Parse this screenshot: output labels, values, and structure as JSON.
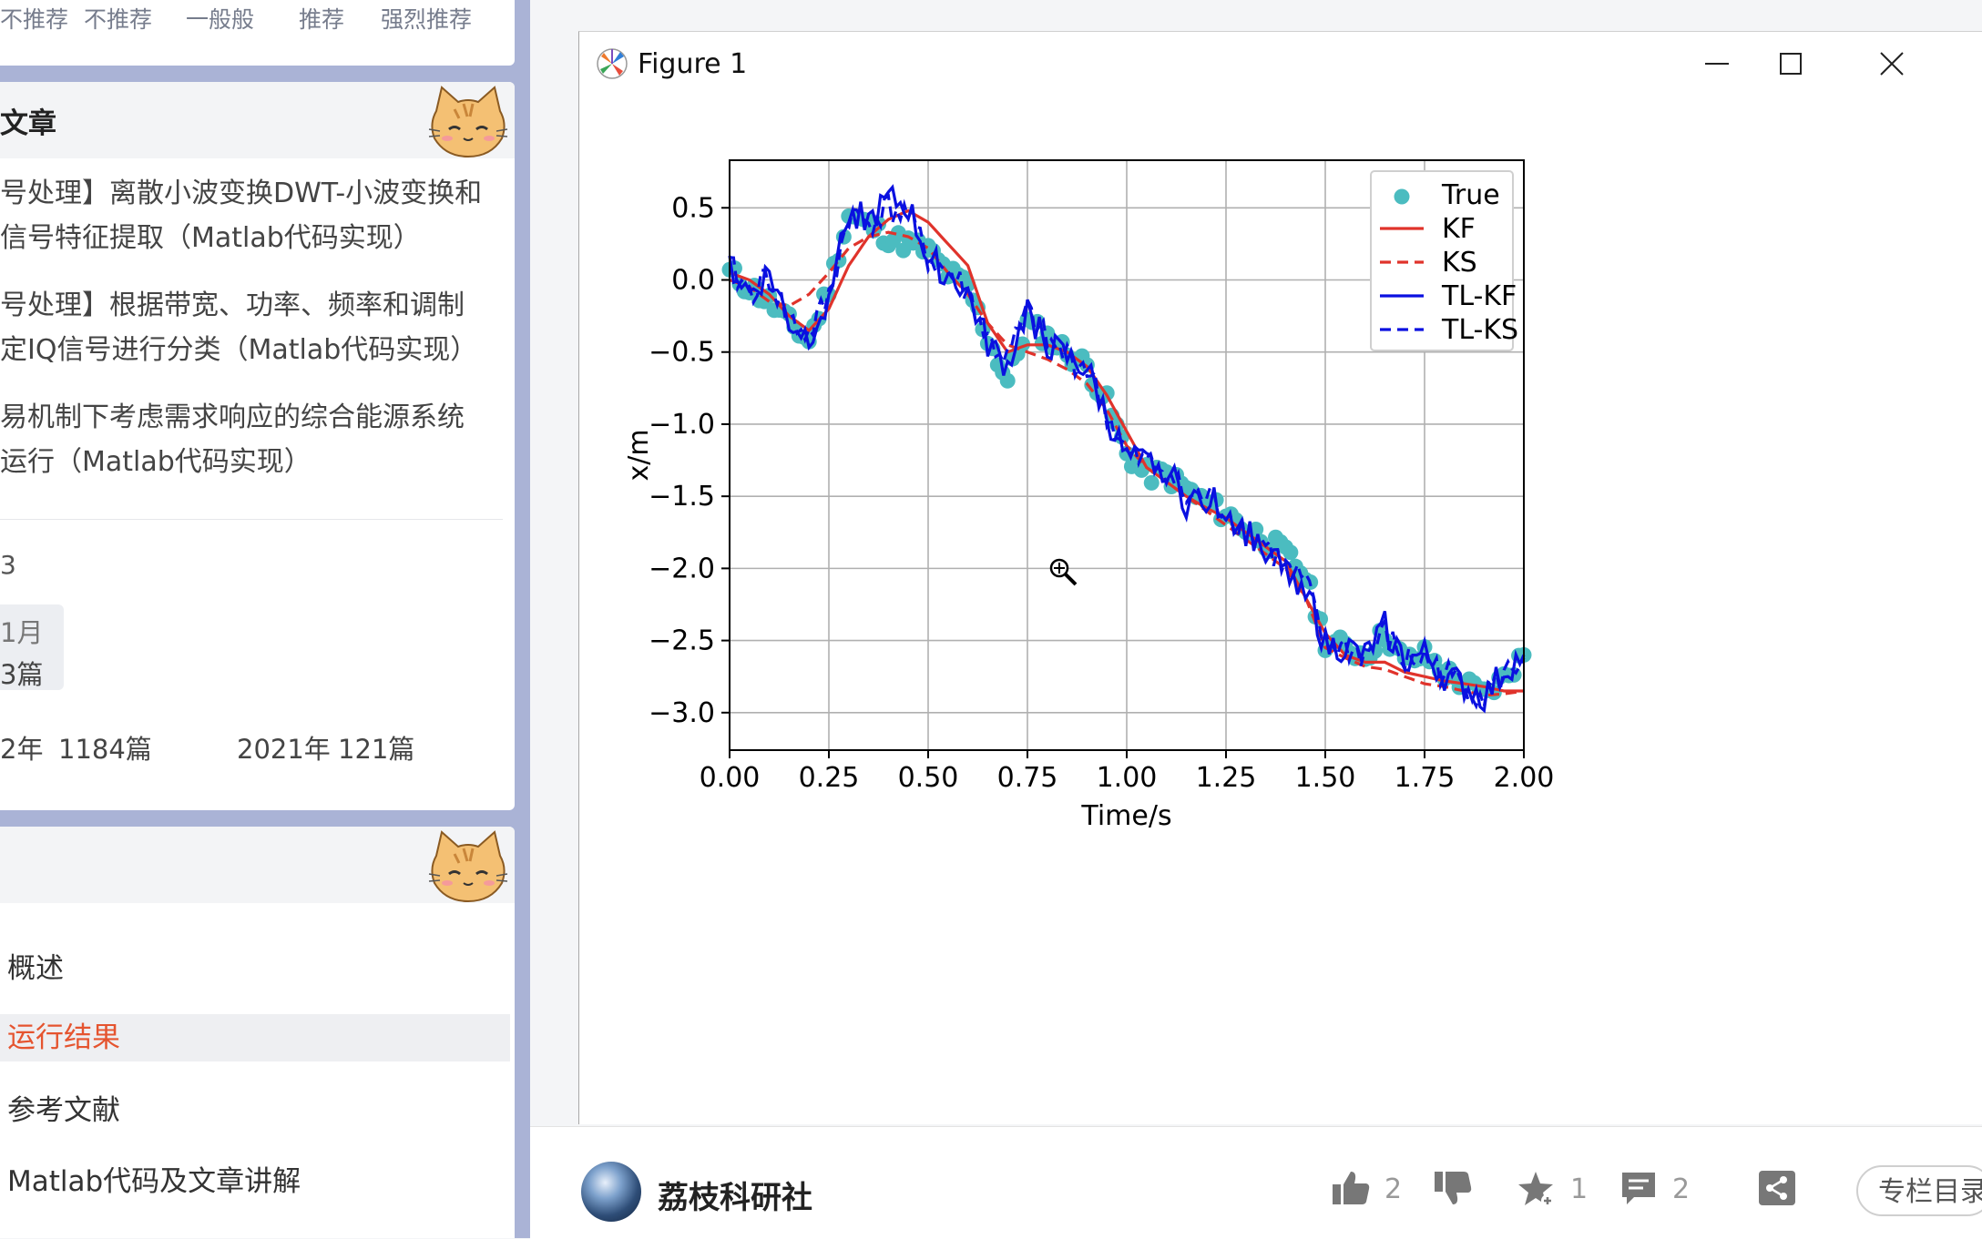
{
  "sidebar": {
    "rating_labels": [
      "不推荐",
      "不推荐",
      "一般般",
      "推荐",
      "强烈推荐"
    ],
    "related_title": "文章",
    "articles": [
      [
        "号处理】离散小波变换DWT-小波变换和",
        "信号特征提取（Matlab代码实现）"
      ],
      [
        "号处理】根据带宽、功率、频率和调制",
        "定IQ信号进行分类（Matlab代码实现）"
      ],
      [
        "易机制下考虑需求响应的综合能源系统",
        "运行（Matlab代码实现）"
      ]
    ],
    "stat_value": "3",
    "month_chip": [
      "1月",
      "3篇"
    ],
    "archive": [
      {
        "year": "2年",
        "count": "1184篇"
      },
      {
        "year": "2021年",
        "count": "121篇"
      }
    ],
    "toc_title": "",
    "toc": [
      {
        "label": "概述",
        "active": false
      },
      {
        "label": "运行结果",
        "active": true
      },
      {
        "label": "参考文献",
        "active": false
      },
      {
        "label": "Matlab代码及文章讲解",
        "active": false
      }
    ]
  },
  "window": {
    "title": "Figure 1",
    "controls": [
      "minimize",
      "maximize",
      "close"
    ]
  },
  "chart_data": {
    "type": "line",
    "xlabel": "Time/s",
    "ylabel": "x/m",
    "xlim": [
      0.0,
      2.0
    ],
    "ylim": [
      -3.26,
      0.83
    ],
    "xticks": [
      "0.00",
      "0.25",
      "0.50",
      "0.75",
      "1.00",
      "1.25",
      "1.50",
      "1.75",
      "2.00"
    ],
    "yticks": [
      "0.5",
      "0.0",
      "−0.5",
      "−1.0",
      "−1.5",
      "−2.0",
      "−2.5",
      "−3.0"
    ],
    "grid": true,
    "legend_position": "top-right",
    "legend": [
      {
        "name": "True",
        "style": "marker",
        "color": "#4bbcc0"
      },
      {
        "name": "KF",
        "style": "solid",
        "color": "#e0332b"
      },
      {
        "name": "KS",
        "style": "dashed",
        "color": "#e0332b"
      },
      {
        "name": "TL-KF",
        "style": "solid",
        "color": "#0a10e0"
      },
      {
        "name": "TL-KS",
        "style": "dashed",
        "color": "#0a10e0"
      }
    ],
    "x": [
      0.0,
      0.05,
      0.1,
      0.15,
      0.2,
      0.25,
      0.3,
      0.35,
      0.4,
      0.45,
      0.5,
      0.55,
      0.6,
      0.65,
      0.7,
      0.75,
      0.8,
      0.85,
      0.9,
      0.95,
      1.0,
      1.05,
      1.1,
      1.15,
      1.2,
      1.25,
      1.3,
      1.35,
      1.4,
      1.45,
      1.5,
      1.55,
      1.6,
      1.65,
      1.7,
      1.75,
      1.8,
      1.85,
      1.9,
      1.95,
      2.0
    ],
    "series": [
      {
        "name": "True",
        "values": [
          0.05,
          -0.05,
          -0.15,
          -0.3,
          -0.42,
          -0.05,
          0.45,
          0.38,
          0.3,
          0.25,
          0.2,
          0.05,
          -0.05,
          -0.4,
          -0.7,
          -0.3,
          -0.4,
          -0.5,
          -0.6,
          -0.85,
          -1.2,
          -1.35,
          -1.35,
          -1.45,
          -1.55,
          -1.62,
          -1.72,
          -1.8,
          -1.9,
          -2.05,
          -2.5,
          -2.55,
          -2.6,
          -2.45,
          -2.65,
          -2.6,
          -2.72,
          -2.8,
          -2.88,
          -2.76,
          -2.6
        ]
      },
      {
        "name": "KF",
        "values": [
          0.05,
          0.0,
          -0.1,
          -0.25,
          -0.35,
          -0.2,
          0.1,
          0.3,
          0.42,
          0.48,
          0.4,
          0.25,
          0.1,
          -0.3,
          -0.5,
          -0.45,
          -0.45,
          -0.5,
          -0.6,
          -0.8,
          -1.05,
          -1.3,
          -1.4,
          -1.5,
          -1.58,
          -1.65,
          -1.75,
          -1.85,
          -1.95,
          -2.2,
          -2.45,
          -2.6,
          -2.65,
          -2.65,
          -2.72,
          -2.75,
          -2.78,
          -2.8,
          -2.82,
          -2.85,
          -2.85
        ]
      },
      {
        "name": "KS",
        "values": [
          0.0,
          -0.05,
          -0.15,
          -0.18,
          -0.1,
          0.05,
          0.22,
          0.3,
          0.33,
          0.3,
          0.22,
          0.05,
          -0.1,
          -0.3,
          -0.45,
          -0.5,
          -0.55,
          -0.62,
          -0.72,
          -0.9,
          -1.15,
          -1.3,
          -1.4,
          -1.5,
          -1.6,
          -1.7,
          -1.8,
          -1.9,
          -2.0,
          -2.2,
          -2.55,
          -2.62,
          -2.68,
          -2.7,
          -2.75,
          -2.8,
          -2.82,
          -2.85,
          -2.88,
          -2.87,
          -2.85
        ]
      },
      {
        "name": "TL-KF",
        "values": [
          0.1,
          -0.1,
          0.05,
          -0.3,
          -0.4,
          -0.1,
          0.5,
          0.4,
          0.55,
          0.5,
          0.15,
          0.05,
          -0.1,
          -0.45,
          -0.6,
          -0.2,
          -0.45,
          -0.55,
          -0.62,
          -0.95,
          -1.25,
          -1.28,
          -1.3,
          -1.55,
          -1.5,
          -1.6,
          -1.75,
          -1.85,
          -2.05,
          -2.1,
          -2.55,
          -2.55,
          -2.62,
          -2.4,
          -2.65,
          -2.6,
          -2.75,
          -2.82,
          -2.9,
          -2.72,
          -2.6
        ]
      },
      {
        "name": "TL-KS",
        "values": [
          0.08,
          -0.08,
          0.02,
          -0.28,
          -0.38,
          -0.12,
          0.45,
          0.4,
          0.5,
          0.45,
          0.15,
          0.05,
          -0.08,
          -0.42,
          -0.55,
          -0.22,
          -0.43,
          -0.53,
          -0.6,
          -0.92,
          -1.22,
          -1.27,
          -1.3,
          -1.52,
          -1.5,
          -1.6,
          -1.73,
          -1.83,
          -2.0,
          -2.1,
          -2.52,
          -2.55,
          -2.6,
          -2.45,
          -2.65,
          -2.62,
          -2.73,
          -2.8,
          -2.88,
          -2.74,
          -2.62
        ]
      }
    ]
  },
  "footer": {
    "author": "荔枝科研社",
    "likes": "2",
    "favorites": "1",
    "comments": "2",
    "column_button": "专栏目录"
  }
}
